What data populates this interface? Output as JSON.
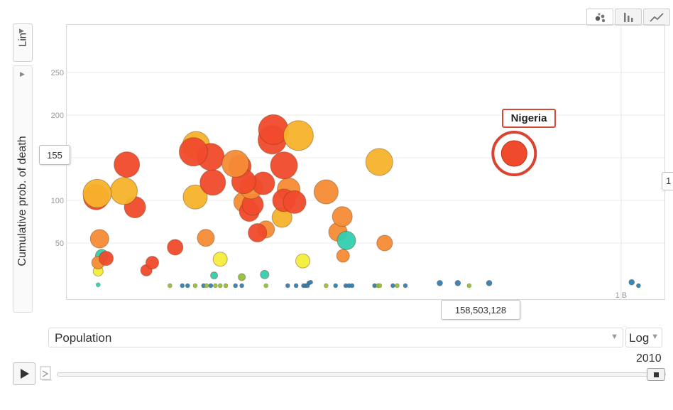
{
  "view_buttons": [
    {
      "name": "bubble-chart-view",
      "icon": "bubble-icon",
      "active": true
    },
    {
      "name": "bar-chart-view",
      "icon": "bar-chart-icon",
      "active": false
    },
    {
      "name": "line-chart-view",
      "icon": "line-chart-icon",
      "active": false
    }
  ],
  "y_scale_label": "Lin",
  "y_axis_label": "Cumulative prob. of death",
  "y_hover_value": "155",
  "x_hover_value": "158,503,128",
  "highlight_label": "Nigeria",
  "right_edge_label": "1",
  "x_axis_select": "Population",
  "x_scale_label": "Log",
  "year": "2010",
  "colors": {
    "red": "#f04a2c",
    "orange": "#f58c35",
    "amber": "#f7b32b",
    "yellow": "#f3ee3a",
    "teal": "#31cfb0",
    "highlight": "#d9432f"
  },
  "chart_data": {
    "type": "scatter",
    "title": "",
    "xlabel": "Population",
    "ylabel": "Cumulative prob. of death",
    "x_scale": "log",
    "y_scale": "linear",
    "ylim": [
      0,
      300
    ],
    "xlim": [
      100000,
      1500000000
    ],
    "y_ticks": [
      50,
      100,
      150,
      200,
      250
    ],
    "x_ticks": [
      {
        "value": 1000000000,
        "label": "1 B"
      }
    ],
    "highlighted": {
      "name": "Nigeria",
      "x": 158503128,
      "y": 155
    },
    "points": [
      {
        "x": 120000,
        "y": 108,
        "size": 20,
        "color": "amber"
      },
      {
        "x": 118000,
        "y": 104,
        "size": 18,
        "color": "red"
      },
      {
        "x": 125000,
        "y": 55,
        "size": 13,
        "color": "orange"
      },
      {
        "x": 130000,
        "y": 35,
        "size": 9,
        "color": "teal"
      },
      {
        "x": 122000,
        "y": 27,
        "size": 9,
        "color": "orange"
      },
      {
        "x": 140000,
        "y": 32,
        "size": 10,
        "color": "red"
      },
      {
        "x": 122000,
        "y": 17,
        "size": 7,
        "color": "yellow"
      },
      {
        "x": 122000,
        "y": 1,
        "size": 3,
        "color": "teal"
      },
      {
        "x": 200000,
        "y": 142,
        "size": 18,
        "color": "red"
      },
      {
        "x": 190000,
        "y": 111,
        "size": 19,
        "color": "amber"
      },
      {
        "x": 230000,
        "y": 92,
        "size": 15,
        "color": "red"
      },
      {
        "x": 280000,
        "y": 18,
        "size": 8,
        "color": "red"
      },
      {
        "x": 310000,
        "y": 27,
        "size": 9,
        "color": "red"
      },
      {
        "x": 460000,
        "y": 45,
        "size": 11,
        "color": "red"
      },
      {
        "x": 660000,
        "y": 165,
        "size": 19,
        "color": "amber"
      },
      {
        "x": 630000,
        "y": 157,
        "size": 20,
        "color": "red"
      },
      {
        "x": 650000,
        "y": 104,
        "size": 17,
        "color": "amber"
      },
      {
        "x": 850000,
        "y": 151,
        "size": 19,
        "color": "red"
      },
      {
        "x": 880000,
        "y": 121,
        "size": 18,
        "color": "red"
      },
      {
        "x": 780000,
        "y": 56,
        "size": 12,
        "color": "orange"
      },
      {
        "x": 1000000,
        "y": 31,
        "size": 10,
        "color": "yellow"
      },
      {
        "x": 1300000,
        "y": 143,
        "size": 19,
        "color": "orange"
      },
      {
        "x": 1400000,
        "y": 140,
        "size": 16,
        "color": "red"
      },
      {
        "x": 1500000,
        "y": 122,
        "size": 17,
        "color": "red"
      },
      {
        "x": 1700000,
        "y": 115,
        "size": 16,
        "color": "orange"
      },
      {
        "x": 1500000,
        "y": 98,
        "size": 14,
        "color": "orange"
      },
      {
        "x": 1750000,
        "y": 95,
        "size": 15,
        "color": "red"
      },
      {
        "x": 1650000,
        "y": 87,
        "size": 14,
        "color": "red"
      },
      {
        "x": 1900000,
        "y": 62,
        "size": 13,
        "color": "red"
      },
      {
        "x": 2200000,
        "y": 66,
        "size": 12,
        "color": "orange"
      },
      {
        "x": 2100000,
        "y": 120,
        "size": 16,
        "color": "red"
      },
      {
        "x": 2500000,
        "y": 183,
        "size": 21,
        "color": "red"
      },
      {
        "x": 2450000,
        "y": 171,
        "size": 20,
        "color": "red"
      },
      {
        "x": 3000000,
        "y": 141,
        "size": 19,
        "color": "red"
      },
      {
        "x": 3250000,
        "y": 113,
        "size": 16,
        "color": "orange"
      },
      {
        "x": 3000000,
        "y": 100,
        "size": 16,
        "color": "red"
      },
      {
        "x": 3600000,
        "y": 98,
        "size": 16,
        "color": "red"
      },
      {
        "x": 2900000,
        "y": 80,
        "size": 14,
        "color": "amber"
      },
      {
        "x": 3850000,
        "y": 176,
        "size": 21,
        "color": "amber"
      },
      {
        "x": 4150000,
        "y": 29,
        "size": 10,
        "color": "yellow"
      },
      {
        "x": 6200000,
        "y": 110,
        "size": 17,
        "color": "orange"
      },
      {
        "x": 8200000,
        "y": 81,
        "size": 14,
        "color": "orange"
      },
      {
        "x": 7600000,
        "y": 63,
        "size": 13,
        "color": "orange"
      },
      {
        "x": 8800000,
        "y": 53,
        "size": 13,
        "color": "teal"
      },
      {
        "x": 8300000,
        "y": 35,
        "size": 9,
        "color": "orange"
      },
      {
        "x": 17000000,
        "y": 50,
        "size": 11,
        "color": "orange"
      },
      {
        "x": 15500000,
        "y": 145,
        "size": 19,
        "color": "amber"
      },
      {
        "x": 420000,
        "y": 0,
        "size": 3,
        "color": "green"
      },
      {
        "x": 520000,
        "y": 0,
        "size": 3,
        "color": "blue"
      },
      {
        "x": 570000,
        "y": 0,
        "size": 3,
        "color": "blue"
      },
      {
        "x": 650000,
        "y": 0,
        "size": 3,
        "color": "green"
      },
      {
        "x": 750000,
        "y": 0,
        "size": 3,
        "color": "blue"
      },
      {
        "x": 790000,
        "y": 0,
        "size": 3,
        "color": "green"
      },
      {
        "x": 850000,
        "y": 0,
        "size": 3,
        "color": "blue"
      },
      {
        "x": 920000,
        "y": 0,
        "size": 3,
        "color": "green"
      },
      {
        "x": 1000000,
        "y": 0,
        "size": 3,
        "color": "green"
      },
      {
        "x": 1100000,
        "y": 0,
        "size": 3,
        "color": "green"
      },
      {
        "x": 1300000,
        "y": 0,
        "size": 3,
        "color": "blue"
      },
      {
        "x": 1450000,
        "y": 0,
        "size": 3,
        "color": "blue"
      },
      {
        "x": 900000,
        "y": 12,
        "size": 5,
        "color": "teal"
      },
      {
        "x": 1450000,
        "y": 10,
        "size": 5,
        "color": "green"
      },
      {
        "x": 2200000,
        "y": 0,
        "size": 3,
        "color": "green"
      },
      {
        "x": 2150000,
        "y": 13,
        "size": 6,
        "color": "teal"
      },
      {
        "x": 3200000,
        "y": 0,
        "size": 3,
        "color": "blue"
      },
      {
        "x": 3700000,
        "y": 0,
        "size": 3,
        "color": "blue"
      },
      {
        "x": 4200000,
        "y": 0,
        "size": 3,
        "color": "blue"
      },
      {
        "x": 4350000,
        "y": 0,
        "size": 3,
        "color": "blue"
      },
      {
        "x": 4500000,
        "y": 0,
        "size": 3,
        "color": "blue"
      },
      {
        "x": 4600000,
        "y": 3,
        "size": 3,
        "color": "blue"
      },
      {
        "x": 4750000,
        "y": 4,
        "size": 3,
        "color": "blue"
      },
      {
        "x": 6200000,
        "y": 0,
        "size": 3,
        "color": "green"
      },
      {
        "x": 7300000,
        "y": 0,
        "size": 3,
        "color": "blue"
      },
      {
        "x": 8700000,
        "y": 0,
        "size": 3,
        "color": "blue"
      },
      {
        "x": 9200000,
        "y": 0,
        "size": 3,
        "color": "blue"
      },
      {
        "x": 9700000,
        "y": 0,
        "size": 3,
        "color": "blue"
      },
      {
        "x": 14300000,
        "y": 0,
        "size": 3,
        "color": "blue"
      },
      {
        "x": 15200000,
        "y": 0,
        "size": 3,
        "color": "green"
      },
      {
        "x": 15600000,
        "y": 0,
        "size": 3,
        "color": "green"
      },
      {
        "x": 19600000,
        "y": 0,
        "size": 3,
        "color": "blue"
      },
      {
        "x": 21100000,
        "y": 0,
        "size": 3,
        "color": "green"
      },
      {
        "x": 24300000,
        "y": 0,
        "size": 3,
        "color": "blue"
      },
      {
        "x": 44000000,
        "y": 3,
        "size": 4,
        "color": "blue"
      },
      {
        "x": 60000000,
        "y": 3,
        "size": 4,
        "color": "blue"
      },
      {
        "x": 73000000,
        "y": 0,
        "size": 3,
        "color": "green"
      },
      {
        "x": 103000000,
        "y": 3,
        "size": 4,
        "color": "blue"
      },
      {
        "x": 1200000000,
        "y": 4,
        "size": 4,
        "color": "blue"
      },
      {
        "x": 1350000000,
        "y": 0,
        "size": 3,
        "color": "blue"
      }
    ]
  }
}
